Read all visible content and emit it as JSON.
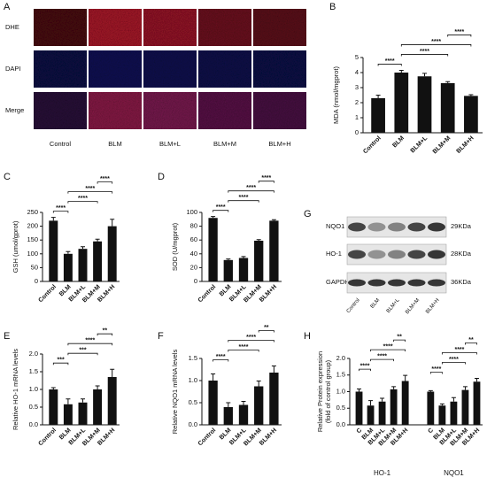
{
  "panel_a": {
    "panel": "A",
    "rows": [
      "DHE",
      "DAPI",
      "Merge"
    ],
    "columns": [
      "Control",
      "BLM",
      "BLM+L",
      "BLM+M",
      "BLM+H"
    ]
  },
  "panel_g": {
    "panel": "G",
    "bands": [
      "NQO1",
      "HO-1",
      "GAPDH"
    ],
    "sizes": [
      "29KDa",
      "28KDa",
      "36KDa"
    ],
    "lanes": [
      "Control",
      "BLM",
      "BLM+L",
      "BLM+M",
      "BLM+H"
    ]
  },
  "chart_data": [
    {
      "panel": "B",
      "type": "bar",
      "y_label": "MDA  (nmol/mgprot)",
      "categories": [
        "Control",
        "BLM",
        "BLM+L",
        "BLM+M",
        "BLM+H"
      ],
      "values": [
        2.3,
        4.0,
        3.75,
        3.3,
        2.45
      ],
      "errors": [
        0.2,
        0.15,
        0.2,
        0.1,
        0.08
      ],
      "color": "#111111",
      "ylim": [
        0,
        5
      ],
      "yticks": [
        0,
        1,
        2,
        3,
        4,
        5
      ],
      "annotations": [
        "****",
        "****",
        "****",
        "****"
      ]
    },
    {
      "panel": "C",
      "type": "bar",
      "y_label": "GSH  (umol/gprot)",
      "categories": [
        "Control",
        "BLM",
        "BLM+L",
        "BLM+M",
        "BLM+H"
      ],
      "values": [
        220,
        100,
        118,
        145,
        200
      ],
      "errors": [
        12,
        8,
        8,
        8,
        25
      ],
      "color": "#111111",
      "ylim": [
        0,
        250
      ],
      "yticks": [
        0,
        50,
        100,
        150,
        200,
        250
      ],
      "annotations": [
        "****",
        "****",
        "****",
        "****"
      ]
    },
    {
      "panel": "D",
      "type": "bar",
      "y_label": "SOD  (U/mgprot)",
      "categories": [
        "Control",
        "BLM",
        "BLM+L",
        "BLM+M",
        "BLM+H"
      ],
      "values": [
        92,
        31,
        34,
        59,
        88
      ],
      "errors": [
        2,
        1.5,
        2,
        1.5,
        1.5
      ],
      "color": "#111111",
      "ylim": [
        0,
        100
      ],
      "yticks": [
        0,
        20,
        40,
        60,
        80,
        100
      ],
      "annotations": [
        "****",
        "****",
        "****",
        "****"
      ]
    },
    {
      "panel": "E",
      "type": "bar",
      "y_label": "Relative HO-1 mRNA levels",
      "categories": [
        "Control",
        "BLM",
        "BLM+L",
        "BLM+M",
        "BLM+H"
      ],
      "values": [
        1.0,
        0.58,
        0.63,
        1.0,
        1.35
      ],
      "errors": [
        0.05,
        0.15,
        0.1,
        0.1,
        0.22
      ],
      "color": "#111111",
      "ylim": [
        0,
        2
      ],
      "yticks": [
        {
          "value": 0,
          "label": "0.0"
        },
        0.5,
        {
          "value": 1,
          "label": "1.0"
        },
        1.5,
        {
          "value": 2,
          "label": "2.0"
        }
      ],
      "annotations": [
        "***",
        "***",
        "****",
        "**"
      ]
    },
    {
      "panel": "F",
      "type": "bar",
      "y_label": "Relative NQO1 mRNA levels",
      "categories": [
        "Control",
        "BLM",
        "BLM+L",
        "BLM+M",
        "BLM+H"
      ],
      "values": [
        1.0,
        0.4,
        0.45,
        0.87,
        1.18
      ],
      "errors": [
        0.15,
        0.1,
        0.08,
        0.12,
        0.15
      ],
      "color": "#111111",
      "ylim": [
        0,
        1.5
      ],
      "yticks": [
        {
          "value": 0,
          "label": "0.0"
        },
        0.5,
        {
          "value": 1,
          "label": "1.0"
        },
        1.5
      ],
      "annotations": [
        "****",
        "****",
        "****",
        "**"
      ]
    },
    {
      "panel": "H",
      "type": "bar",
      "y_label": "Relative Protein expression",
      "y_sublabel": "(fold of control group)",
      "categories": [
        "C",
        "BLM",
        "BLM+L",
        "BLM+M",
        "BLM+H"
      ],
      "series": [
        {
          "name": "HO-1",
          "color": "#111111",
          "values": [
            1.0,
            0.58,
            0.7,
            1.07,
            1.32
          ],
          "errors": [
            0.08,
            0.15,
            0.1,
            0.08,
            0.17
          ],
          "annotations": [
            "****",
            "****",
            "****",
            "**"
          ]
        },
        {
          "name": "NQO1",
          "color": "#111111",
          "values": [
            1.0,
            0.58,
            0.7,
            1.05,
            1.3
          ],
          "errors": [
            0.03,
            0.05,
            0.12,
            0.1,
            0.1
          ],
          "annotations": [
            "****",
            "****",
            "****",
            "**"
          ]
        }
      ],
      "ylim": [
        0,
        2
      ],
      "yticks": [
        {
          "value": 0,
          "label": "0.0"
        },
        0.5,
        {
          "value": 1,
          "label": "1.0"
        },
        1.5,
        {
          "value": 2,
          "label": "2.0"
        }
      ]
    }
  ]
}
